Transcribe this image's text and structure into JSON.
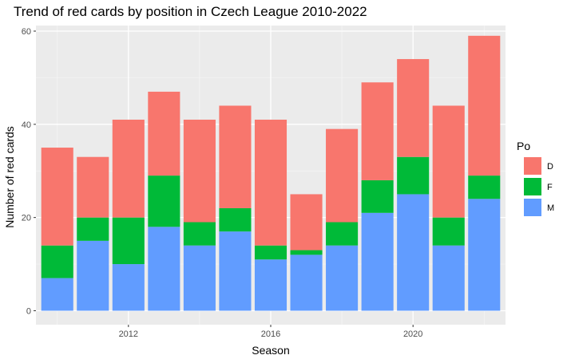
{
  "chart_data": {
    "type": "bar",
    "stacked": true,
    "title": "Trend of red cards by position in Czech League 2010-2022",
    "xlabel": "Season",
    "ylabel": "Number of red cards",
    "x": [
      2010,
      2011,
      2012,
      2013,
      2014,
      2015,
      2016,
      2017,
      2018,
      2019,
      2020,
      2021,
      2022
    ],
    "x_ticks": [
      "2012",
      "2016",
      "2020"
    ],
    "x_range": [
      2009.4,
      2022.6
    ],
    "y_ticks": [
      "0",
      "20",
      "40",
      "60"
    ],
    "ylim": [
      -3,
      61.2
    ],
    "grid": true,
    "legend": {
      "title": "Po",
      "position": "right",
      "entries": [
        "D",
        "F",
        "M"
      ]
    },
    "series": [
      {
        "name": "M",
        "color": "#619CFF",
        "values": [
          7,
          15,
          10,
          18,
          14,
          17,
          11,
          12,
          14,
          21,
          25,
          14,
          24
        ]
      },
      {
        "name": "F",
        "color": "#00BA38",
        "values": [
          7,
          5,
          10,
          11,
          5,
          5,
          3,
          1,
          5,
          7,
          8,
          6,
          5
        ]
      },
      {
        "name": "D",
        "color": "#F8766D",
        "values": [
          21,
          13,
          21,
          18,
          22,
          22,
          27,
          12,
          20,
          21,
          21,
          24,
          30
        ]
      }
    ]
  }
}
